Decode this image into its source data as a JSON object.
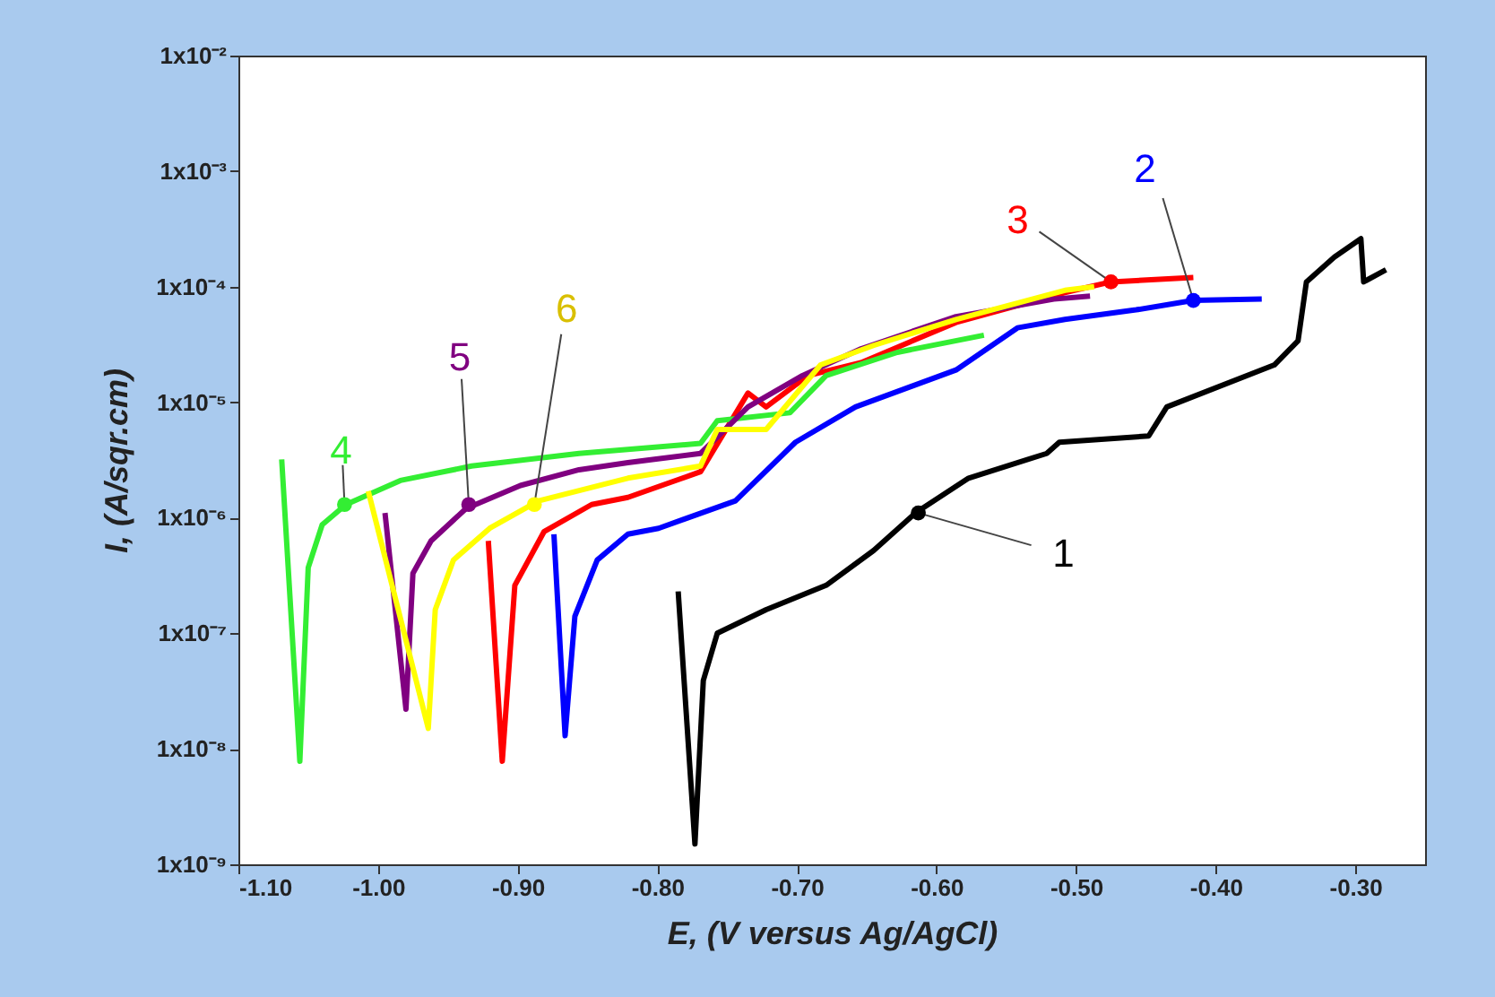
{
  "chart_data": {
    "type": "line",
    "xlabel": "E,  (V versus Ag/AgCl)",
    "ylabel": "I,  (A/sqr.cm)",
    "log": "y",
    "xlim": [
      -1.1,
      -0.25
    ],
    "ylim": [
      1e-09,
      0.01
    ],
    "xticks": [
      {
        "value": -1.1,
        "label": "-1.10"
      },
      {
        "value": -1.0,
        "label": "-1.00"
      },
      {
        "value": -0.9,
        "label": "-0.90"
      },
      {
        "value": -0.8,
        "label": "-0.80"
      },
      {
        "value": -0.7,
        "label": "-0.70"
      },
      {
        "value": -0.6,
        "label": "-0.60"
      },
      {
        "value": -0.5,
        "label": "-0.50"
      },
      {
        "value": -0.4,
        "label": "-0.40"
      },
      {
        "value": -0.3,
        "label": "-0.30"
      }
    ],
    "yticks": [
      {
        "value": 1e-09,
        "label": "1x10⁻⁹"
      },
      {
        "value": 1e-08,
        "label": "1x10⁻⁸"
      },
      {
        "value": 1e-07,
        "label": "1x10⁻⁷"
      },
      {
        "value": 1e-06,
        "label": "1x10⁻⁶"
      },
      {
        "value": 1e-05,
        "label": "1x10⁻⁵"
      },
      {
        "value": 0.0001,
        "label": "1x10⁻⁴"
      },
      {
        "value": 0.001,
        "label": "1x10⁻³"
      },
      {
        "value": 0.01,
        "label": "1x10⁻²"
      }
    ],
    "series": [
      {
        "color": "#000000",
        "x": [
          -0.785,
          -0.773,
          -0.767,
          -0.757,
          -0.722,
          -0.679,
          -0.645,
          -0.615,
          -0.577,
          -0.521,
          -0.512,
          -0.448,
          -0.435,
          -0.358,
          -0.341,
          -0.335,
          -0.315,
          -0.296,
          -0.294,
          -0.278
        ],
        "values": [
          2.3e-07,
          1.5e-09,
          3.9e-08,
          1e-07,
          1.6e-07,
          2.6e-07,
          5.2e-07,
          1.1e-06,
          2.2e-06,
          3.6e-06,
          4.5e-06,
          5.1e-06,
          9.1e-06,
          2.1e-05,
          3.4e-05,
          0.00011,
          0.00018,
          0.00026,
          0.00011,
          0.00014
        ]
      },
      {
        "color": "#0000ff",
        "x": [
          -0.874,
          -0.866,
          -0.859,
          -0.843,
          -0.821,
          -0.799,
          -0.744,
          -0.701,
          -0.658,
          -0.586,
          -0.542,
          -0.508,
          -0.457,
          -0.416,
          -0.367
        ],
        "values": [
          7.2e-07,
          1.3e-08,
          1.4e-07,
          4.3e-07,
          7.2e-07,
          8.1e-07,
          1.4e-06,
          4.5e-06,
          9.1e-06,
          1.9e-05,
          4.4e-05,
          5.2e-05,
          6.3e-05,
          7.6e-05,
          7.8e-05
        ]
      },
      {
        "color": "#ff0000",
        "x": [
          -0.921,
          -0.911,
          -0.902,
          -0.881,
          -0.847,
          -0.821,
          -0.769,
          -0.735,
          -0.722,
          -0.692,
          -0.654,
          -0.586,
          -0.508,
          -0.475,
          -0.416
        ],
        "values": [
          6.3e-07,
          7.8e-09,
          2.6e-07,
          7.6e-07,
          1.3e-06,
          1.5e-06,
          2.5e-06,
          1.2e-05,
          9.1e-06,
          1.7e-05,
          2.2e-05,
          4.9e-05,
          8.9e-05,
          0.00011,
          0.00012
        ]
      },
      {
        "color": "#33ee33",
        "x": [
          -1.069,
          -1.056,
          -1.05,
          -1.04,
          -1.023,
          -0.984,
          -0.933,
          -0.856,
          -0.769,
          -0.757,
          -0.705,
          -0.679,
          -0.628,
          -0.566
        ],
        "values": [
          3.2e-06,
          7.8e-09,
          3.7e-07,
          8.7e-07,
          1.3e-06,
          2.1e-06,
          2.8e-06,
          3.6e-06,
          4.4e-06,
          6.9e-06,
          8.1e-06,
          1.7e-05,
          2.7e-05,
          3.8e-05
        ]
      },
      {
        "color": "#800080",
        "x": [
          -0.995,
          -0.98,
          -0.975,
          -0.962,
          -0.937,
          -0.898,
          -0.856,
          -0.821,
          -0.769,
          -0.735,
          -0.696,
          -0.654,
          -0.586,
          -0.516,
          -0.49
        ],
        "values": [
          1.1e-06,
          2.2e-08,
          3.3e-07,
          6.3e-07,
          1.2e-06,
          1.9e-06,
          2.6e-06,
          3e-06,
          3.6e-06,
          9.1e-06,
          1.7e-05,
          2.9e-05,
          5.5e-05,
          7.8e-05,
          8.3e-05
        ]
      },
      {
        "color": "#ffff00",
        "x": [
          -1.007,
          -0.964,
          -0.959,
          -0.946,
          -0.92,
          -0.885,
          -0.821,
          -0.769,
          -0.757,
          -0.722,
          -0.683,
          -0.645,
          -0.586,
          -0.508,
          -0.487
        ],
        "values": [
          1.7e-06,
          1.5e-08,
          1.6e-07,
          4.3e-07,
          8.1e-07,
          1.4e-06,
          2.2e-06,
          2.8e-06,
          5.8e-06,
          5.8e-06,
          2.1e-05,
          3.1e-05,
          5.2e-05,
          9.3e-05,
          0.0001
        ]
      }
    ],
    "annotations": [
      {
        "text": "1",
        "x": -0.613,
        "y": 1.1e-06
      },
      {
        "text": "2",
        "x": -0.416,
        "y": 7.6e-05
      },
      {
        "text": "3",
        "x": -0.475,
        "y": 0.00011
      },
      {
        "text": "4",
        "x": -1.024,
        "y": 1.3e-06
      },
      {
        "text": "5",
        "x": -0.935,
        "y": 1.3e-06
      },
      {
        "text": "6",
        "x": -0.888,
        "y": 1.3e-06
      }
    ]
  }
}
